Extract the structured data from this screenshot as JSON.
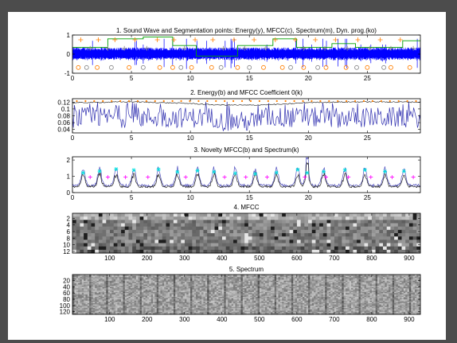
{
  "chart_data": [
    {
      "type": "line",
      "title": "1. Sound Wave and Segmentation points: Energy(y), MFCC(c), Spectrum(m), Dyn. prog.(ko)",
      "xlim": [
        0,
        29.5
      ],
      "ylim": [
        -1,
        1
      ],
      "xticks": [
        0,
        5,
        10,
        15,
        20,
        25
      ],
      "yticks": [
        -1,
        0,
        1
      ],
      "series": [
        {
          "color": "#0000ff",
          "kind": "waveform",
          "amplitude": 0.35,
          "spikes": [
            0.8,
            0.7,
            0.5
          ]
        },
        {
          "color": "#00a000",
          "kind": "dynprog-step",
          "x": [
            0,
            3,
            3,
            6,
            6,
            8.5,
            8.5,
            10.5,
            10.5,
            14,
            14,
            17,
            17,
            19,
            19,
            22,
            22,
            24,
            24,
            28,
            28,
            29.5
          ],
          "y": [
            0.35,
            0.35,
            0.8,
            0.8,
            0.9,
            0.9,
            0.45,
            0.45,
            -0.1,
            -0.1,
            0.45,
            0.45,
            0.8,
            0.8,
            0.35,
            0.35,
            0.55,
            0.55,
            0.35,
            0.35,
            0.7,
            0.7
          ]
        },
        {
          "color": "#ff7f00",
          "kind": "markers-plus",
          "x": [
            0.7,
            2.2,
            3.6,
            5.3,
            7.2,
            8.6,
            10.4,
            11.9,
            13.7,
            15.4,
            17.2,
            18.9,
            20.6,
            22.3,
            24.2,
            26.1,
            27.8
          ],
          "y": [
            0.75,
            0.75,
            0.75,
            0.75,
            0.75,
            0.75,
            0.75,
            0.75,
            0.75,
            0.75,
            0.75,
            0.75,
            0.75,
            0.75,
            0.75,
            0.75,
            0.75
          ]
        },
        {
          "color": "#888888",
          "kind": "markers-plus",
          "x": [
            1.5,
            3.0,
            4.4,
            6.3,
            9.5,
            12.8,
            14.6,
            16.4,
            19.6,
            21.4,
            23.3,
            25.2,
            27.0,
            28.9
          ],
          "y": [
            0.3,
            0.3,
            0.3,
            0.3,
            0.3,
            0.3,
            0.3,
            0.3,
            0.3,
            0.3,
            0.3,
            0.3,
            0.3,
            0.3
          ]
        },
        {
          "color": "#ff7f00",
          "kind": "markers-circle",
          "x": [
            0.5,
            2.1,
            4.8,
            7.4,
            8.5,
            10.1,
            11.8,
            14.0,
            16.2,
            17.8,
            19.6,
            21.5,
            23.2,
            25.0,
            27.0,
            28.6
          ],
          "y": [
            -0.7,
            -0.7,
            -0.7,
            -0.7,
            -0.7,
            -0.7,
            -0.7,
            -0.7,
            -0.7,
            -0.7,
            -0.7,
            -0.7,
            -0.7,
            -0.7,
            -0.7,
            -0.7
          ]
        },
        {
          "color": "#888888",
          "kind": "markers-circle",
          "x": [
            1.2,
            3.3,
            6.0,
            9.2,
            12.6,
            15.0,
            18.5,
            20.8,
            24.1,
            26.4
          ],
          "y": [
            -0.7,
            -0.7,
            -0.7,
            -0.7,
            -0.7,
            -0.7,
            -0.7,
            -0.7,
            -0.7,
            -0.7
          ]
        }
      ]
    },
    {
      "type": "line",
      "title": "2. Energy(b) and MFCC Coefficient 0(k)",
      "xlim": [
        0,
        29.5
      ],
      "ylim": [
        0.03,
        0.13
      ],
      "xticks": [
        0,
        5,
        10,
        15,
        20,
        25
      ],
      "yticks": [
        0.04,
        0.06,
        0.08,
        0.1,
        0.12
      ],
      "ytick_labels": [
        "0.04",
        "0.06",
        "0.08",
        "0.1",
        "0.12"
      ],
      "series": [
        {
          "color": "#3030b0",
          "kind": "energy",
          "base": 0.075,
          "spread": 0.03
        },
        {
          "color": "#303030",
          "kind": "mfcc0",
          "x": [
            0,
            5,
            10,
            12,
            15,
            18,
            20,
            25,
            29.5
          ],
          "y": [
            0.118,
            0.121,
            0.116,
            0.112,
            0.111,
            0.114,
            0.119,
            0.121,
            0.12
          ]
        },
        {
          "color": "#ff8000",
          "kind": "markers-dot",
          "y": 0.123,
          "count": 40
        }
      ]
    },
    {
      "type": "line",
      "title": "3. Novelty MFCC(b) and Spectrum(k)",
      "xlim": [
        0,
        29.5
      ],
      "ylim": [
        0,
        2.2
      ],
      "xticks": [
        0,
        5,
        10,
        15,
        20,
        25
      ],
      "yticks": [
        0,
        1,
        2
      ],
      "series": [
        {
          "color": "#5050c0",
          "kind": "novelty-mfcc"
        },
        {
          "color": "#202020",
          "kind": "novelty-spectrum"
        },
        {
          "color": "#00e0e0",
          "kind": "markers-star",
          "x": [
            0.9,
            2.3,
            3.7,
            5.2,
            7.3,
            8.9,
            10.6,
            12.0,
            13.8,
            15.5,
            17.3,
            19.1,
            19.9,
            21.3,
            23.1,
            24.8,
            26.5,
            28.1
          ]
        },
        {
          "color": "#ff00ff",
          "kind": "markers-plus",
          "x": [
            1.5,
            3.0,
            4.5,
            6.4,
            9.6,
            12.9,
            14.7,
            16.5,
            19.7,
            21.5,
            23.4,
            25.3,
            27.1,
            28.9
          ]
        }
      ]
    },
    {
      "type": "heatmap",
      "title": "4. MFCC",
      "xlim": [
        0.5,
        930
      ],
      "ylim": [
        0.5,
        12.5
      ],
      "xticks": [
        100,
        200,
        300,
        400,
        500,
        600,
        700,
        800,
        900
      ],
      "yticks": [
        2,
        4,
        6,
        8,
        10,
        12
      ],
      "rows": 12,
      "cols": 93,
      "colormap": "gray"
    },
    {
      "type": "heatmap",
      "title": "5. Spectrum",
      "xlim": [
        0.5,
        930
      ],
      "ylim": [
        0.5,
        128.5
      ],
      "xticks": [
        100,
        200,
        300,
        400,
        500,
        600,
        700,
        800,
        900
      ],
      "yticks": [
        20,
        40,
        60,
        80,
        100,
        120
      ],
      "rows": 32,
      "cols": 186,
      "colormap": "gray"
    }
  ]
}
